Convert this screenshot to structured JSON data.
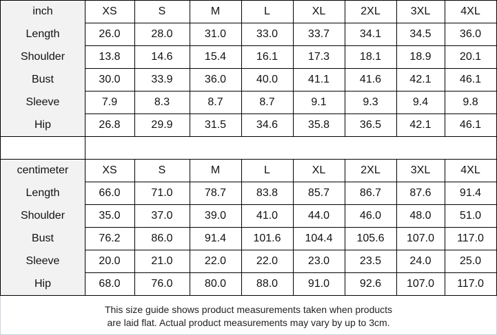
{
  "sizes": [
    "XS",
    "S",
    "M",
    "L",
    "XL",
    "2XL",
    "3XL",
    "4XL"
  ],
  "tables": [
    {
      "unit": "inch",
      "rows": [
        {
          "label": "Length",
          "values": [
            "26.0",
            "28.0",
            "31.0",
            "33.0",
            "33.7",
            "34.1",
            "34.5",
            "36.0"
          ]
        },
        {
          "label": "Shoulder",
          "values": [
            "13.8",
            "14.6",
            "15.4",
            "16.1",
            "17.3",
            "18.1",
            "18.9",
            "20.1"
          ]
        },
        {
          "label": "Bust",
          "values": [
            "30.0",
            "33.9",
            "36.0",
            "40.0",
            "41.1",
            "41.6",
            "42.1",
            "46.1"
          ]
        },
        {
          "label": "Sleeve",
          "values": [
            "7.9",
            "8.3",
            "8.7",
            "8.7",
            "9.1",
            "9.3",
            "9.4",
            "9.8"
          ]
        },
        {
          "label": "Hip",
          "values": [
            "26.8",
            "29.9",
            "31.5",
            "34.6",
            "35.8",
            "36.5",
            "42.1",
            "46.1"
          ]
        }
      ]
    },
    {
      "unit": "centimeter",
      "rows": [
        {
          "label": "Length",
          "values": [
            "66.0",
            "71.0",
            "78.7",
            "83.8",
            "85.7",
            "86.7",
            "87.6",
            "91.4"
          ]
        },
        {
          "label": "Shoulder",
          "values": [
            "35.0",
            "37.0",
            "39.0",
            "41.0",
            "44.0",
            "46.0",
            "48.0",
            "51.0"
          ]
        },
        {
          "label": "Bust",
          "values": [
            "76.2",
            "86.0",
            "91.4",
            "101.6",
            "104.4",
            "105.6",
            "107.0",
            "117.0"
          ]
        },
        {
          "label": "Sleeve",
          "values": [
            "20.0",
            "21.0",
            "22.0",
            "22.0",
            "23.0",
            "23.5",
            "24.0",
            "25.0"
          ]
        },
        {
          "label": "Hip",
          "values": [
            "68.0",
            "76.0",
            "80.0",
            "88.0",
            "91.0",
            "92.6",
            "107.0",
            "117.0"
          ]
        }
      ]
    }
  ],
  "footer": {
    "line1": "This size guide shows product measurements taken when products",
    "line2": "are laid flat. Actual product measurements may vary by up to 3cm."
  }
}
